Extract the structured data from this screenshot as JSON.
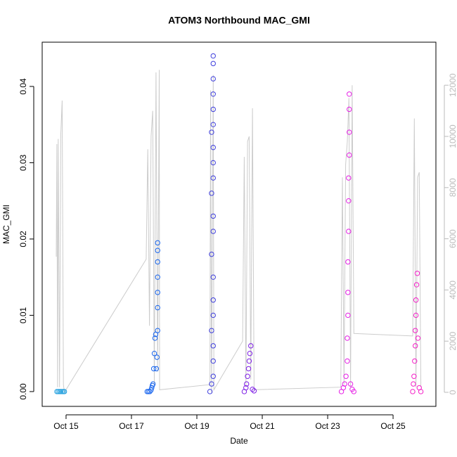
{
  "chart_data": {
    "type": "scatter",
    "title": "ATOM3 Northbound MAC_GMI",
    "x_label": "Date",
    "y_label": "MAC_GMI",
    "xlim": [
      14.27,
      26.31
    ],
    "xticks": [
      {
        "value": 15,
        "label": "Oct 15"
      },
      {
        "value": 17,
        "label": "Oct 17"
      },
      {
        "value": 19,
        "label": "Oct 19"
      },
      {
        "value": 21,
        "label": "Oct 21"
      },
      {
        "value": 23,
        "label": "Oct 23"
      },
      {
        "value": 25,
        "label": "Oct 25"
      }
    ],
    "ylim": [
      -0.00194,
      0.0458
    ],
    "yticks": [
      {
        "value": 0,
        "label": "0.00"
      },
      {
        "value": 0.01,
        "label": "0.01"
      },
      {
        "value": 0.02,
        "label": "0.02"
      },
      {
        "value": 0.03,
        "label": "0.03"
      },
      {
        "value": 0.04,
        "label": "0.04"
      }
    ],
    "y2lim": [
      -549,
      13681
    ],
    "y2ticks": [
      0,
      2000,
      4000,
      6000,
      8000,
      10000,
      12000
    ],
    "series": [
      {
        "color": "#cccccc",
        "axis": "y2",
        "x": [
          14.7,
          14.72,
          14.74,
          14.76,
          14.8,
          14.84,
          14.88,
          14.92,
          14.95,
          17.45,
          17.5,
          17.55,
          17.6,
          17.65,
          17.7,
          17.75,
          17.8,
          17.85,
          17.86,
          19.4,
          19.42,
          19.45,
          19.5,
          19.52,
          20.4,
          20.45,
          20.5,
          20.55,
          20.6,
          20.65,
          20.7,
          20.75,
          23.4,
          23.45,
          23.5,
          23.55,
          23.6,
          23.65,
          23.7,
          23.75,
          23.8,
          25.6,
          25.65,
          25.7,
          25.75,
          25.8,
          25.85
        ],
        "values": [
          5300,
          9700,
          200,
          9900,
          200,
          10100,
          11400,
          300,
          0,
          5200,
          9500,
          2600,
          10000,
          11000,
          300,
          12500,
          800,
          12600,
          100,
          300,
          11800,
          0,
          12400,
          100,
          2000,
          9200,
          200,
          9800,
          10000,
          500,
          11100,
          100,
          200,
          8400,
          300,
          8900,
          9800,
          11500,
          200,
          12000,
          2300,
          2200,
          10700,
          200,
          8400,
          8600,
          200
        ]
      },
      {
        "color": "#29a3e0",
        "x": [
          14.72,
          14.76,
          14.8,
          14.84,
          14.88,
          14.92,
          14.95
        ],
        "values": [
          0,
          0,
          0,
          0,
          0,
          0,
          0
        ]
      },
      {
        "color": "#1a66ee",
        "x": [
          17.48,
          17.52,
          17.56,
          17.6,
          17.62,
          17.64,
          17.66,
          17.68,
          17.7,
          17.72,
          17.74,
          17.76,
          17.78,
          17.8,
          17.8,
          17.8,
          17.8,
          17.8,
          17.8,
          17.8
        ],
        "values": [
          0,
          0,
          0,
          0.0002,
          0.0005,
          0.0008,
          0.001,
          0.003,
          0.005,
          0.007,
          0.0075,
          0.003,
          0.0045,
          0.008,
          0.011,
          0.013,
          0.015,
          0.017,
          0.0185,
          0.0195
        ]
      },
      {
        "color": "#3f3fdd",
        "x": [
          19.4,
          19.45,
          19.5,
          19.5,
          19.5,
          19.45,
          19.5,
          19.5,
          19.5,
          19.45,
          19.5,
          19.5,
          19.45,
          19.5,
          19.5,
          19.5,
          19.45,
          19.5,
          19.5,
          19.5,
          19.5,
          19.5,
          19.5
        ],
        "values": [
          0,
          0.001,
          0.002,
          0.004,
          0.006,
          0.008,
          0.01,
          0.012,
          0.015,
          0.018,
          0.021,
          0.023,
          0.026,
          0.028,
          0.03,
          0.032,
          0.034,
          0.035,
          0.037,
          0.039,
          0.041,
          0.043,
          0.044
        ]
      },
      {
        "color": "#7f1fe6",
        "x": [
          20.45,
          20.5,
          20.52,
          20.55,
          20.58,
          20.6,
          20.62,
          20.65,
          20.7,
          20.75
        ],
        "values": [
          0,
          0.0005,
          0.001,
          0.002,
          0.003,
          0.004,
          0.005,
          0.006,
          0.0003,
          0.0001
        ]
      },
      {
        "color": "#e61fe6",
        "x": [
          23.42,
          23.48,
          23.52,
          23.56,
          23.6,
          23.6,
          23.62,
          23.62,
          23.62,
          23.64,
          23.64,
          23.64,
          23.66,
          23.66,
          23.66,
          23.66,
          23.7,
          23.75,
          23.8
        ],
        "values": [
          0,
          0.0005,
          0.001,
          0.002,
          0.004,
          0.007,
          0.01,
          0.013,
          0.017,
          0.021,
          0.025,
          0.028,
          0.031,
          0.034,
          0.037,
          0.039,
          0.001,
          0.0003,
          0
        ]
      },
      {
        "color": "#f51fc8",
        "x": [
          25.6,
          25.62,
          25.64,
          25.66,
          25.68,
          25.68,
          25.7,
          25.7,
          25.72,
          25.74,
          25.76,
          25.8,
          25.85
        ],
        "values": [
          0,
          0.001,
          0.002,
          0.004,
          0.006,
          0.008,
          0.01,
          0.012,
          0.014,
          0.0155,
          0.007,
          0.0005,
          0
        ]
      }
    ]
  }
}
